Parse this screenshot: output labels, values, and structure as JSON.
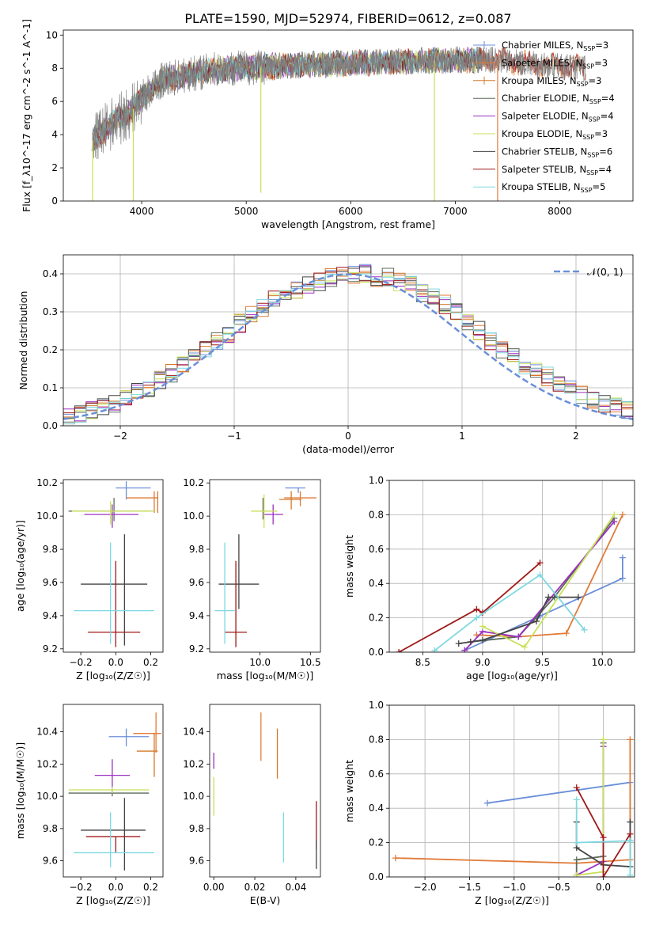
{
  "figure_title": "PLATE=1590, MJD=52974, FIBERID=0612, z=0.087",
  "colors": {
    "Chabrier MILES": "#6a8fd8",
    "Salpeter MILES": "#e07b39",
    "Kroupa MILES": "#d4782a",
    "Chabrier ELODIE": "#5c6b5c",
    "Salpeter ELODIE": "#9b30c0",
    "Kroupa ELODIE": "#c8e05a",
    "Chabrier STELIB": "#444444",
    "Salpeter STELIB": "#a01818",
    "Kroupa STELIB": "#7dd8e0",
    "spectrum": "#808080",
    "gaussian": "#6a8fd8"
  },
  "chart_data": [
    {
      "id": "spectrum",
      "type": "line",
      "xlabel": "wavelength [Angstrom, rest frame]",
      "ylabel": "Flux [f_λ10^-17 erg cm^-2 s^-1 A^-1]",
      "xlim": [
        3250,
        8700
      ],
      "ylim": [
        0,
        10.3
      ],
      "xticks": [
        4000,
        5000,
        6000,
        7000,
        8000
      ],
      "yticks": [
        0,
        2,
        4,
        6,
        8,
        10
      ],
      "legend_position": "right",
      "legend": [
        {
          "model": "Chabrier MILES",
          "nssp": "3"
        },
        {
          "model": "Salpeter MILES",
          "nssp": "3"
        },
        {
          "model": "Kroupa MILES",
          "nssp": "3"
        },
        {
          "model": "Chabrier ELODIE",
          "nssp": "4"
        },
        {
          "model": "Salpeter ELODIE",
          "nssp": "4"
        },
        {
          "model": "Kroupa ELODIE",
          "nssp": "3"
        },
        {
          "model": "Chabrier STELIB",
          "nssp": "6"
        },
        {
          "model": "Salpeter STELIB",
          "nssp": "4"
        },
        {
          "model": "Kroupa STELIB",
          "nssp": "5"
        }
      ],
      "continuum": {
        "x": [
          3520,
          3700,
          3900,
          4000,
          4200,
          4500,
          4800,
          5200,
          5600,
          6000,
          6500,
          7000,
          7400,
          7800,
          8200
        ],
        "y": [
          3.6,
          4.6,
          5.4,
          6.2,
          7.3,
          7.7,
          8.0,
          8.1,
          8.2,
          8.3,
          8.4,
          8.5,
          8.5,
          8.2,
          8.0
        ]
      }
    },
    {
      "id": "residual-histogram",
      "type": "histogram",
      "xlabel": "(data-model)/error",
      "ylabel": "Normed distribution",
      "xlim": [
        -2.5,
        2.5
      ],
      "ylim": [
        0,
        0.45
      ],
      "xticks": [
        -2,
        -1,
        0,
        1,
        2
      ],
      "yticks": [
        0.0,
        0.1,
        0.2,
        0.3,
        0.4
      ],
      "legend_label": "𝒩(0, 1)",
      "legend_position": "top-right",
      "grid": true,
      "bins": 50,
      "envelope_centers": [
        -2.45,
        -2.35,
        -2.25,
        -2.15,
        -2.05,
        -1.95,
        -1.85,
        -1.75,
        -1.65,
        -1.55,
        -1.45,
        -1.35,
        -1.25,
        -1.15,
        -1.05,
        -0.95,
        -0.85,
        -0.75,
        -0.65,
        -0.55,
        -0.45,
        -0.35,
        -0.25,
        -0.15,
        -0.05,
        0.05,
        0.15,
        0.25,
        0.35,
        0.45,
        0.55,
        0.65,
        0.75,
        0.85,
        0.95,
        1.05,
        1.15,
        1.25,
        1.35,
        1.45,
        1.55,
        1.65,
        1.75,
        1.85,
        1.95,
        2.05,
        2.15,
        2.25,
        2.35,
        2.45
      ],
      "envelope_values": [
        0.02,
        0.03,
        0.04,
        0.05,
        0.06,
        0.07,
        0.09,
        0.1,
        0.12,
        0.14,
        0.16,
        0.18,
        0.2,
        0.22,
        0.24,
        0.27,
        0.29,
        0.31,
        0.33,
        0.35,
        0.36,
        0.37,
        0.38,
        0.39,
        0.4,
        0.4,
        0.4,
        0.39,
        0.39,
        0.38,
        0.37,
        0.35,
        0.34,
        0.32,
        0.3,
        0.27,
        0.25,
        0.22,
        0.2,
        0.18,
        0.16,
        0.14,
        0.13,
        0.11,
        0.1,
        0.08,
        0.07,
        0.06,
        0.05,
        0.04
      ]
    },
    {
      "id": "age-vs-Z",
      "type": "errorbar",
      "xlabel": "Z [log₁₀(Z/Z☉)]",
      "ylabel": "age [log₁₀(age/yr)]",
      "xlim": [
        -0.3,
        0.27
      ],
      "ylim": [
        9.18,
        10.22
      ],
      "xticks": [
        -0.2,
        0.0,
        0.2
      ],
      "yticks": [
        9.2,
        9.4,
        9.6,
        9.8,
        10.0,
        10.2
      ],
      "points": [
        {
          "model": "Chabrier MILES",
          "x": 0.06,
          "y": 10.17,
          "xerr": [
            0.06,
            0.14
          ],
          "yerr": [
            0.07,
            0.04
          ]
        },
        {
          "model": "Salpeter MILES",
          "x": 0.22,
          "y": 10.11,
          "xerr": [
            0.16,
            0.02
          ],
          "yerr": [
            0.09,
            0.04
          ]
        },
        {
          "model": "Kroupa MILES",
          "x": 0.24,
          "y": 10.1,
          "xerr": [
            0.0,
            0.0
          ],
          "yerr": [
            0.08,
            0.05
          ]
        },
        {
          "model": "Chabrier ELODIE",
          "x": -0.01,
          "y": 10.03,
          "xerr": [
            0.26,
            0.21
          ],
          "yerr": [
            0.06,
            0.08
          ]
        },
        {
          "model": "Salpeter ELODIE",
          "x": -0.02,
          "y": 10.01,
          "xerr": [
            0.16,
            0.15
          ],
          "yerr": [
            0.08,
            0.06
          ]
        },
        {
          "model": "Kroupa ELODIE",
          "x": -0.03,
          "y": 10.03,
          "xerr": [
            0.22,
            0.25
          ],
          "yerr": [
            0.08,
            0.06
          ]
        },
        {
          "model": "Chabrier STELIB",
          "x": 0.05,
          "y": 9.59,
          "xerr": [
            0.25,
            0.13
          ],
          "yerr": [
            0.37,
            0.3
          ]
        },
        {
          "model": "Salpeter STELIB",
          "x": 0.0,
          "y": 9.3,
          "xerr": [
            0.16,
            0.14
          ],
          "yerr": [
            0.09,
            0.43
          ]
        },
        {
          "model": "Kroupa STELIB",
          "x": -0.03,
          "y": 9.43,
          "xerr": [
            0.21,
            0.25
          ],
          "yerr": [
            0.2,
            0.41
          ]
        }
      ]
    },
    {
      "id": "age-vs-mass",
      "type": "errorbar",
      "xlabel": "mass [log₁₀(M/M☉)]",
      "ylabel": "",
      "xlim": [
        9.5,
        10.6
      ],
      "ylim": [
        9.18,
        10.22
      ],
      "xticks": [
        10.0,
        10.5
      ],
      "yticks": [
        9.2,
        9.4,
        9.6,
        9.8,
        10.0,
        10.2
      ],
      "points": [
        {
          "model": "Chabrier MILES",
          "x": 10.38,
          "y": 10.17,
          "xerr": [
            0.13,
            0.07
          ],
          "yerr": [
            0.03,
            0.0
          ]
        },
        {
          "model": "Salpeter MILES",
          "x": 10.4,
          "y": 10.11,
          "xerr": [
            0.16,
            0.16
          ],
          "yerr": [
            0.05,
            0.04
          ]
        },
        {
          "model": "Kroupa MILES",
          "x": 10.31,
          "y": 10.1,
          "xerr": [
            0.12,
            0.1
          ],
          "yerr": [
            0.06,
            0.05
          ]
        },
        {
          "model": "Chabrier ELODIE",
          "x": 10.03,
          "y": 10.03,
          "xerr": [
            0.0,
            0.0
          ],
          "yerr": [
            0.05,
            0.08
          ]
        },
        {
          "model": "Salpeter ELODIE",
          "x": 10.13,
          "y": 10.01,
          "xerr": [
            0.1,
            0.1
          ],
          "yerr": [
            0.06,
            0.06
          ]
        },
        {
          "model": "Kroupa ELODIE",
          "x": 10.04,
          "y": 10.03,
          "xerr": [
            0.13,
            0.13
          ],
          "yerr": [
            0.1,
            0.1
          ]
        },
        {
          "model": "Chabrier STELIB",
          "x": 9.79,
          "y": 9.59,
          "xerr": [
            0.2,
            0.2
          ],
          "yerr": [
            0.15,
            0.3
          ]
        },
        {
          "model": "Salpeter STELIB",
          "x": 9.76,
          "y": 9.3,
          "xerr": [
            0.11,
            0.11
          ],
          "yerr": [
            0.09,
            0.43
          ]
        },
        {
          "model": "Kroupa STELIB",
          "x": 9.65,
          "y": 9.43,
          "xerr": [
            0.1,
            0.1
          ],
          "yerr": [
            0.2,
            0.41
          ]
        }
      ]
    },
    {
      "id": "mass-weight-vs-age",
      "type": "line",
      "xlabel": "age [log₁₀(age/yr)]",
      "ylabel": "mass weight",
      "xlim": [
        8.22,
        10.27
      ],
      "ylim": [
        0,
        1
      ],
      "xticks": [
        8.5,
        9.0,
        9.5,
        10.0
      ],
      "yticks": [
        0.0,
        0.2,
        0.4,
        0.6,
        0.8,
        1.0
      ],
      "grid": true,
      "series": [
        {
          "model": "Chabrier MILES",
          "x": [
            8.85,
            9.48,
            10.17,
            10.17
          ],
          "y": [
            0.01,
            0.21,
            0.43,
            0.55
          ]
        },
        {
          "model": "Salpeter MILES",
          "x": [
            8.95,
            9.3,
            9.7,
            10.17
          ],
          "y": [
            0.1,
            0.09,
            0.11,
            0.8
          ]
        },
        {
          "model": "Chabrier ELODIE",
          "x": [
            8.9,
            9.3,
            9.6,
            10.1
          ],
          "y": [
            0.06,
            0.09,
            0.32,
            0.78
          ]
        },
        {
          "model": "Salpeter ELODIE",
          "x": [
            8.85,
            9.0,
            9.3,
            10.1
          ],
          "y": [
            0.01,
            0.12,
            0.09,
            0.76
          ]
        },
        {
          "model": "Kroupa ELODIE",
          "x": [
            9.0,
            9.35,
            10.1
          ],
          "y": [
            0.15,
            0.03,
            0.8
          ]
        },
        {
          "model": "Chabrier STELIB",
          "x": [
            8.8,
            8.9,
            9.0,
            9.45,
            9.55,
            9.8
          ],
          "y": [
            0.05,
            0.06,
            0.07,
            0.18,
            0.32,
            0.32
          ]
        },
        {
          "model": "Salpeter STELIB",
          "x": [
            8.3,
            8.95,
            9.0,
            9.48
          ],
          "y": [
            0.0,
            0.25,
            0.23,
            0.52
          ]
        },
        {
          "model": "Kroupa STELIB",
          "x": [
            8.6,
            8.95,
            9.48,
            9.85
          ],
          "y": [
            0.01,
            0.2,
            0.45,
            0.13
          ]
        }
      ]
    },
    {
      "id": "mass-vs-Z",
      "type": "errorbar",
      "xlabel": "Z [log₁₀(Z/Z☉)]",
      "ylabel": "mass [log₁₀(M/M☉)]",
      "xlim": [
        -0.3,
        0.27
      ],
      "ylim": [
        9.5,
        10.57
      ],
      "xticks": [
        -0.2,
        0.0,
        0.2
      ],
      "yticks": [
        9.6,
        9.8,
        10.0,
        10.2,
        10.4
      ],
      "points": [
        {
          "model": "Chabrier MILES",
          "x": 0.06,
          "y": 10.37,
          "xerr": [
            0.1,
            0.13
          ],
          "yerr": [
            0.06,
            0.05
          ]
        },
        {
          "model": "Salpeter MILES",
          "x": 0.23,
          "y": 10.39,
          "xerr": [
            0.13,
            0.03
          ],
          "yerr": [
            0.12,
            0.13
          ]
        },
        {
          "model": "Kroupa MILES",
          "x": 0.22,
          "y": 10.28,
          "xerr": [
            0.1,
            0.02
          ],
          "yerr": [
            0.16,
            0.11
          ]
        },
        {
          "model": "Chabrier ELODIE",
          "x": -0.02,
          "y": 10.02,
          "xerr": [
            0.25,
            0.21
          ],
          "yerr": [
            0.02,
            0.02
          ]
        },
        {
          "model": "Salpeter ELODIE",
          "x": -0.02,
          "y": 10.13,
          "xerr": [
            0.1,
            0.1
          ],
          "yerr": [
            0.1,
            0.1
          ]
        },
        {
          "model": "Kroupa ELODIE",
          "x": -0.02,
          "y": 10.04,
          "xerr": [
            0.25,
            0.21
          ],
          "yerr": [
            0.02,
            0.02
          ]
        },
        {
          "model": "Chabrier STELIB",
          "x": 0.05,
          "y": 9.79,
          "xerr": [
            0.25,
            0.12
          ],
          "yerr": [
            0.25,
            0.2
          ]
        },
        {
          "model": "Salpeter STELIB",
          "x": 0.0,
          "y": 9.75,
          "xerr": [
            0.17,
            0.14
          ],
          "yerr": [
            0.1,
            0.0
          ]
        },
        {
          "model": "Kroupa STELIB",
          "x": -0.03,
          "y": 9.65,
          "xerr": [
            0.21,
            0.25
          ],
          "yerr": [
            0.09,
            0.25
          ]
        }
      ]
    },
    {
      "id": "mass-vs-EBV",
      "type": "errorbar",
      "xlabel": "E(B-V)",
      "ylabel": "",
      "xlim": [
        -0.002,
        0.052
      ],
      "ylim": [
        9.5,
        10.57
      ],
      "xticks": [
        0.0,
        0.02,
        0.04
      ],
      "yticks": [
        9.6,
        9.8,
        10.0,
        10.2,
        10.4
      ],
      "points": [
        {
          "model": "Salpeter ELODIE",
          "x": 0.0,
          "y": 10.22,
          "xerr": [
            0,
            0
          ],
          "yerr": [
            0.05,
            0.05
          ]
        },
        {
          "model": "Kroupa ELODIE",
          "x": 0.0,
          "y": 10.0,
          "xerr": [
            0,
            0
          ],
          "yerr": [
            0.12,
            0.12
          ]
        },
        {
          "model": "Salpeter MILES",
          "x": 0.023,
          "y": 10.37,
          "xerr": [
            0,
            0
          ],
          "yerr": [
            0.15,
            0.15
          ]
        },
        {
          "model": "Kroupa MILES",
          "x": 0.031,
          "y": 10.27,
          "xerr": [
            0,
            0
          ],
          "yerr": [
            0.16,
            0.15
          ]
        },
        {
          "model": "Kroupa STELIB",
          "x": 0.034,
          "y": 9.74,
          "xerr": [
            0,
            0
          ],
          "yerr": [
            0.15,
            0.16
          ]
        },
        {
          "model": "Salpeter STELIB",
          "x": 0.05,
          "y": 9.82,
          "xerr": [
            0,
            0
          ],
          "yerr": [
            0.15,
            0.15
          ]
        },
        {
          "model": "Chabrier STELIB",
          "x": 0.05,
          "y": 9.68,
          "xerr": [
            0,
            0
          ],
          "yerr": [
            0.13,
            0.05
          ]
        }
      ]
    },
    {
      "id": "mass-weight-vs-Z",
      "type": "line",
      "xlabel": "Z [log₁₀(Z/Z☉)]",
      "ylabel": "mass weight",
      "xlim": [
        -2.4,
        0.35
      ],
      "ylim": [
        0,
        1
      ],
      "xticks": [
        -2.0,
        -1.5,
        -1.0,
        -0.5,
        0.0
      ],
      "yticks": [
        0.0,
        0.2,
        0.4,
        0.6,
        0.8,
        1.0
      ],
      "grid": true,
      "series": [
        {
          "model": "Chabrier MILES",
          "x": [
            -1.3,
            0.3,
            0.3
          ],
          "y": [
            0.43,
            0.55,
            0.21
          ]
        },
        {
          "model": "Salpeter MILES",
          "x": [
            -2.33,
            -0.3,
            0.3,
            0.3
          ],
          "y": [
            0.11,
            0.08,
            0.1,
            0.8
          ]
        },
        {
          "model": "Chabrier ELODIE",
          "x": [
            -0.3,
            -0.3,
            0.0,
            0.0
          ],
          "y": [
            0.01,
            0.1,
            0.12,
            0.78
          ]
        },
        {
          "model": "Salpeter ELODIE",
          "x": [
            -0.3,
            0.0,
            0.0
          ],
          "y": [
            0.01,
            0.09,
            0.76
          ]
        },
        {
          "model": "Kroupa ELODIE",
          "x": [
            -0.3,
            0.0,
            0.0
          ],
          "y": [
            0.01,
            0.03,
            0.8
          ]
        },
        {
          "model": "Chabrier STELIB",
          "x": [
            -0.3,
            -0.3,
            0.0,
            0.3,
            0.3
          ],
          "y": [
            0.32,
            0.17,
            0.07,
            0.06,
            0.32
          ]
        },
        {
          "model": "Salpeter STELIB",
          "x": [
            -0.3,
            0.0,
            0.0,
            0.3
          ],
          "y": [
            0.52,
            0.23,
            0.0,
            0.25
          ]
        },
        {
          "model": "Kroupa STELIB",
          "x": [
            -0.3,
            -0.3,
            0.3,
            0.3
          ],
          "y": [
            0.45,
            0.2,
            0.21,
            0.01
          ]
        }
      ]
    }
  ]
}
